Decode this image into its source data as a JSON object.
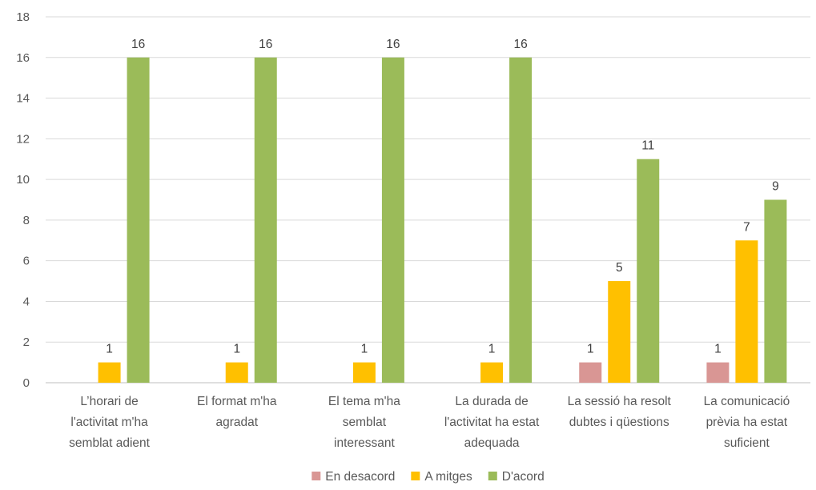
{
  "chart_data": {
    "type": "bar",
    "categories": [
      [
        "L’horari de",
        "l'activitat m'ha",
        "semblat adient"
      ],
      [
        "El format m'ha",
        "agradat"
      ],
      [
        "El tema m'ha",
        "semblat",
        "interessant"
      ],
      [
        "La durada de",
        "l'activitat ha estat",
        "adequada"
      ],
      [
        "La sessió ha resolt",
        "dubtes i qüestions"
      ],
      [
        "La comunicació",
        "prèvia ha estat",
        "suficient"
      ]
    ],
    "series": [
      {
        "name": "En desacord",
        "color": "#D99694",
        "values": [
          null,
          null,
          null,
          null,
          1,
          1
        ]
      },
      {
        "name": "A mitges",
        "color": "#FFC000",
        "values": [
          1,
          1,
          1,
          1,
          5,
          7
        ]
      },
      {
        "name": "D'acord",
        "color": "#9BBB59",
        "values": [
          16,
          16,
          16,
          16,
          11,
          9
        ]
      }
    ],
    "ylim": [
      0,
      18
    ],
    "yticks": [
      0,
      2,
      4,
      6,
      8,
      10,
      12,
      14,
      16,
      18
    ],
    "grid": true,
    "legend": "bottom",
    "data_labels": true
  }
}
